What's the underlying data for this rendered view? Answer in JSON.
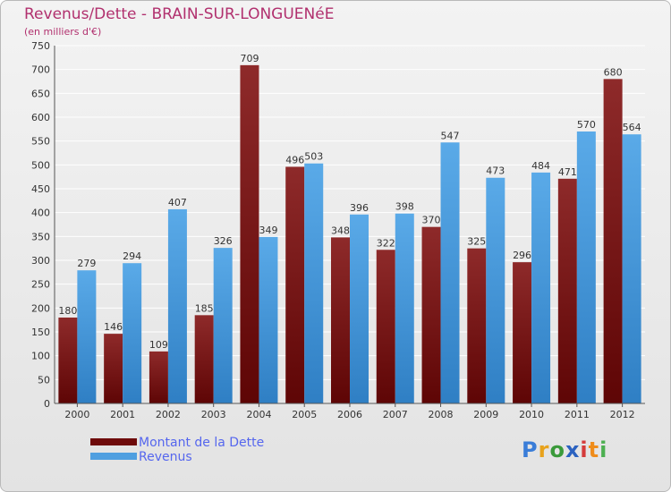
{
  "title": "Revenus/Dette - BRAIN-SUR-LONGUENéE",
  "subtitle": "(en milliers d'€)",
  "colors": {
    "dette": "#8b1a1a",
    "revenus": "#4f9fe0",
    "title": "#b1306e",
    "legend_text": "#5566ee"
  },
  "legend": {
    "dette_label": "Montant de la Dette",
    "revenus_label": "Revenus"
  },
  "logo": {
    "text": "Proxiti",
    "letters": [
      "P",
      "r",
      "o",
      "x",
      "i",
      "t",
      "i"
    ],
    "colors": [
      "#3a7dd8",
      "#e8a21c",
      "#3a9a3a",
      "#2b62c0",
      "#d43b3b",
      "#ef8c1a",
      "#4caf50"
    ]
  },
  "chart_data": {
    "type": "bar",
    "title": "Revenus/Dette - BRAIN-SUR-LONGUENéE",
    "ylabel": "(en milliers d'€)",
    "xlabel": "",
    "ylim": [
      0,
      750
    ],
    "yticks": [
      0,
      50,
      100,
      150,
      200,
      250,
      300,
      350,
      400,
      450,
      500,
      550,
      600,
      650,
      700,
      750
    ],
    "grid": true,
    "legend_position": "bottom-left",
    "categories": [
      "2000",
      "2001",
      "2002",
      "2003",
      "2004",
      "2005",
      "2006",
      "2007",
      "2008",
      "2009",
      "2010",
      "2011",
      "2012"
    ],
    "series": [
      {
        "name": "Montant de la Dette",
        "values": [
          180,
          146,
          109,
          185,
          709,
          496,
          348,
          322,
          370,
          325,
          296,
          471,
          680
        ]
      },
      {
        "name": "Revenus",
        "values": [
          279,
          294,
          407,
          326,
          349,
          503,
          396,
          398,
          547,
          473,
          484,
          570,
          564
        ]
      }
    ]
  }
}
